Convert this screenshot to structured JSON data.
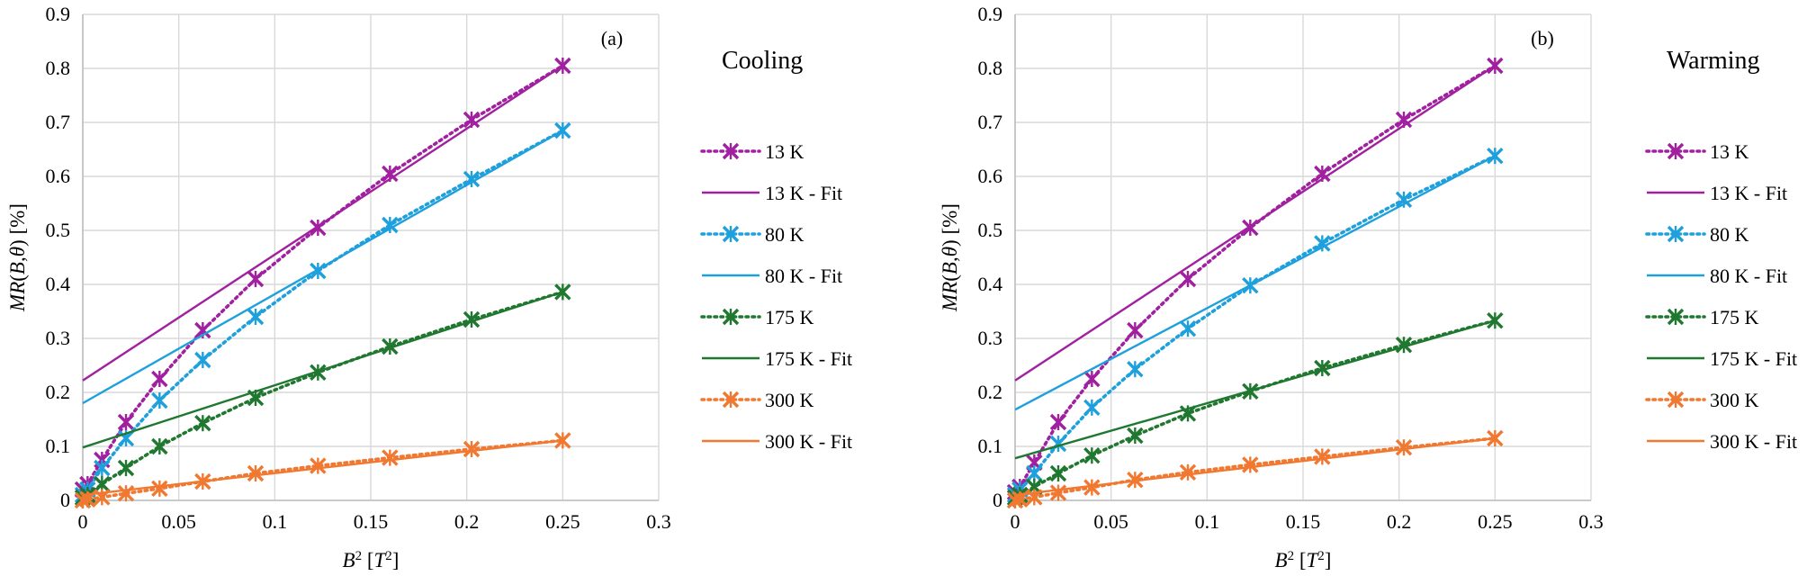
{
  "chart_data": [
    {
      "type": "line",
      "panel_label": "(a)",
      "legend_title": "Cooling",
      "xlabel": "B² [T²]",
      "ylabel": "MR(B,θ) [%]",
      "xlim": [
        0,
        0.3
      ],
      "ylim": [
        0,
        0.9
      ],
      "xticks": [
        0,
        0.05,
        0.1,
        0.15,
        0.2,
        0.25,
        0.3
      ],
      "yticks": [
        0,
        0.1,
        0.2,
        0.3,
        0.4,
        0.5,
        0.6,
        0.7,
        0.8,
        0.9
      ],
      "xtick_labels": [
        "0",
        "0.05",
        "0.1",
        "0.15",
        "0.2",
        "0.25",
        "0.3"
      ],
      "ytick_labels": [
        "0",
        "0.1",
        "0.2",
        "0.3",
        "0.4",
        "0.5",
        "0.6",
        "0.7",
        "0.8",
        "0.9"
      ],
      "grid": true,
      "legend_position": "right",
      "series": [
        {
          "name": "13 K",
          "color": "#A020A0",
          "style": "dotted-markers",
          "x": [
            0,
            0.0025,
            0.01,
            0.0225,
            0.04,
            0.0625,
            0.09,
            0.1225,
            0.16,
            0.2025,
            0.25
          ],
          "y": [
            0.02,
            0.03,
            0.075,
            0.145,
            0.225,
            0.315,
            0.41,
            0.505,
            0.605,
            0.705,
            0.805
          ]
        },
        {
          "name": "13 K - Fit",
          "color": "#A020A0",
          "style": "solid",
          "x": [
            0,
            0.25
          ],
          "y": [
            0.222,
            0.805
          ]
        },
        {
          "name": "80 K",
          "color": "#1EA0DC",
          "style": "dotted-markers",
          "x": [
            0,
            0.0025,
            0.01,
            0.0225,
            0.04,
            0.0625,
            0.09,
            0.1225,
            0.16,
            0.2025,
            0.25
          ],
          "y": [
            0.01,
            0.02,
            0.06,
            0.115,
            0.185,
            0.26,
            0.34,
            0.425,
            0.51,
            0.595,
            0.685
          ]
        },
        {
          "name": "80 K - Fit",
          "color": "#1EA0DC",
          "style": "solid",
          "x": [
            0,
            0.25
          ],
          "y": [
            0.18,
            0.685
          ]
        },
        {
          "name": "175 K",
          "color": "#207830",
          "style": "dotted-markers",
          "x": [
            0,
            0.0025,
            0.01,
            0.0225,
            0.04,
            0.0625,
            0.09,
            0.1225,
            0.16,
            0.2025,
            0.25
          ],
          "y": [
            0.005,
            0.01,
            0.03,
            0.06,
            0.1,
            0.143,
            0.19,
            0.237,
            0.285,
            0.335,
            0.386
          ]
        },
        {
          "name": "175 K - Fit",
          "color": "#207830",
          "style": "solid",
          "x": [
            0,
            0.25
          ],
          "y": [
            0.098,
            0.386
          ]
        },
        {
          "name": "300 K",
          "color": "#F07830",
          "style": "dotted-markers",
          "x": [
            0,
            0.0025,
            0.01,
            0.0225,
            0.04,
            0.0625,
            0.09,
            0.1225,
            0.16,
            0.2025,
            0.25
          ],
          "y": [
            0.0,
            0.002,
            0.006,
            0.013,
            0.022,
            0.035,
            0.05,
            0.064,
            0.079,
            0.095,
            0.111
          ]
        },
        {
          "name": "300 K - Fit",
          "color": "#F07830",
          "style": "solid",
          "x": [
            0,
            0.25
          ],
          "y": [
            0.01,
            0.111
          ]
        }
      ]
    },
    {
      "type": "line",
      "panel_label": "(b)",
      "legend_title": "Warming",
      "xlabel": "B² [T²]",
      "ylabel": "MR(B,θ) [%]",
      "xlim": [
        0,
        0.3
      ],
      "ylim": [
        0,
        0.9
      ],
      "xticks": [
        0,
        0.05,
        0.1,
        0.15,
        0.2,
        0.25,
        0.3
      ],
      "yticks": [
        0,
        0.1,
        0.2,
        0.3,
        0.4,
        0.5,
        0.6,
        0.7,
        0.8,
        0.9
      ],
      "xtick_labels": [
        "0",
        "0.05",
        "0.1",
        "0.15",
        "0.2",
        "0.25",
        "0.3"
      ],
      "ytick_labels": [
        "0",
        "0.1",
        "0.2",
        "0.3",
        "0.4",
        "0.5",
        "0.6",
        "0.7",
        "0.8",
        "0.9"
      ],
      "grid": true,
      "legend_position": "right",
      "series": [
        {
          "name": "13 K",
          "color": "#A020A0",
          "style": "dotted-markers",
          "x": [
            0,
            0.0025,
            0.01,
            0.0225,
            0.04,
            0.0625,
            0.09,
            0.1225,
            0.16,
            0.2025,
            0.25
          ],
          "y": [
            0.015,
            0.025,
            0.07,
            0.145,
            0.225,
            0.315,
            0.41,
            0.505,
            0.605,
            0.705,
            0.805
          ]
        },
        {
          "name": "13 K - Fit",
          "color": "#A020A0",
          "style": "solid",
          "x": [
            0,
            0.25
          ],
          "y": [
            0.222,
            0.805
          ]
        },
        {
          "name": "80 K",
          "color": "#1EA0DC",
          "style": "dotted-markers",
          "x": [
            0,
            0.0025,
            0.01,
            0.0225,
            0.04,
            0.0625,
            0.09,
            0.1225,
            0.16,
            0.2025,
            0.25
          ],
          "y": [
            0.01,
            0.02,
            0.05,
            0.105,
            0.172,
            0.243,
            0.318,
            0.398,
            0.476,
            0.557,
            0.638
          ]
        },
        {
          "name": "80 K - Fit",
          "color": "#1EA0DC",
          "style": "solid",
          "x": [
            0,
            0.25
          ],
          "y": [
            0.168,
            0.638
          ]
        },
        {
          "name": "175 K",
          "color": "#207830",
          "style": "dotted-markers",
          "x": [
            0,
            0.0025,
            0.01,
            0.0225,
            0.04,
            0.0625,
            0.09,
            0.1225,
            0.16,
            0.2025,
            0.25
          ],
          "y": [
            0.005,
            0.01,
            0.025,
            0.05,
            0.083,
            0.12,
            0.161,
            0.202,
            0.245,
            0.288,
            0.333
          ]
        },
        {
          "name": "175 K - Fit",
          "color": "#207830",
          "style": "solid",
          "x": [
            0,
            0.25
          ],
          "y": [
            0.078,
            0.333
          ]
        },
        {
          "name": "300 K",
          "color": "#F07830",
          "style": "dotted-markers",
          "x": [
            0,
            0.0025,
            0.01,
            0.0225,
            0.04,
            0.0625,
            0.09,
            0.1225,
            0.16,
            0.2025,
            0.25
          ],
          "y": [
            0.0,
            0.002,
            0.006,
            0.014,
            0.024,
            0.038,
            0.052,
            0.066,
            0.081,
            0.098,
            0.115
          ]
        },
        {
          "name": "300 K - Fit",
          "color": "#F07830",
          "style": "solid",
          "x": [
            0,
            0.25
          ],
          "y": [
            0.01,
            0.115
          ]
        }
      ]
    }
  ]
}
